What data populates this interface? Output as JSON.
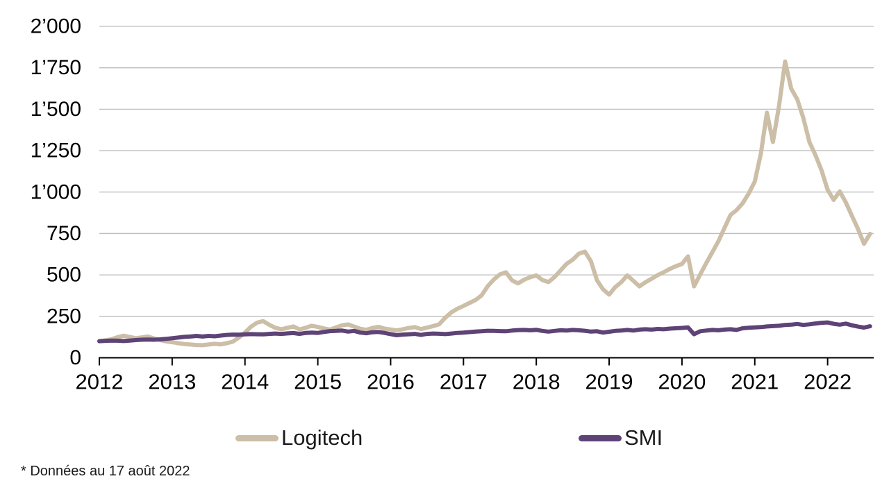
{
  "chart_data": {
    "type": "line",
    "title": "",
    "xlabel": "",
    "ylabel": "",
    "x_range": [
      2012.0,
      2022.633
    ],
    "ylim": [
      0,
      2000
    ],
    "grid": true,
    "grid_color": "#bdbdbd",
    "axis_color": "#000000",
    "text_color": "#000000",
    "legend_position": "bottom",
    "y_ticks": [
      {
        "value": 0,
        "label": "0"
      },
      {
        "value": 250,
        "label": "250"
      },
      {
        "value": 500,
        "label": "500"
      },
      {
        "value": 750,
        "label": "750"
      },
      {
        "value": 1000,
        "label": "1’000"
      },
      {
        "value": 1250,
        "label": "1’250"
      },
      {
        "value": 1500,
        "label": "1’500"
      },
      {
        "value": 1750,
        "label": "1’750"
      },
      {
        "value": 2000,
        "label": "2’000"
      }
    ],
    "x_ticks": [
      {
        "value": 2012,
        "label": "2012"
      },
      {
        "value": 2013,
        "label": "2013"
      },
      {
        "value": 2014,
        "label": "2014"
      },
      {
        "value": 2015,
        "label": "2015"
      },
      {
        "value": 2016,
        "label": "2016"
      },
      {
        "value": 2017,
        "label": "2017"
      },
      {
        "value": 2018,
        "label": "2018"
      },
      {
        "value": 2019,
        "label": "2019"
      },
      {
        "value": 2020,
        "label": "2020"
      },
      {
        "value": 2021,
        "label": "2021"
      },
      {
        "value": 2022,
        "label": "2022"
      }
    ],
    "x_start": 2012.0,
    "x_step": 0.08333,
    "series": [
      {
        "name": "Logitech",
        "color": "#ccbea7",
        "line_width": 6,
        "values": [
          100,
          105,
          112,
          124,
          133,
          126,
          118,
          123,
          128,
          117,
          107,
          99,
          94,
          88,
          83,
          80,
          77,
          76,
          80,
          84,
          81,
          88,
          97,
          122,
          152,
          188,
          212,
          221,
          199,
          181,
          172,
          181,
          189,
          171,
          181,
          193,
          186,
          177,
          170,
          183,
          196,
          201,
          188,
          175,
          169,
          180,
          187,
          176,
          171,
          165,
          172,
          180,
          185,
          173,
          182,
          191,
          202,
          242,
          274,
          296,
          313,
          331,
          349,
          377,
          432,
          472,
          503,
          516,
          467,
          449,
          471,
          486,
          497,
          469,
          457,
          487,
          527,
          567,
          592,
          628,
          641,
          583,
          468,
          413,
          381,
          426,
          456,
          497,
          464,
          431,
          456,
          477,
          499,
          516,
          536,
          553,
          566,
          612,
          431,
          502,
          571,
          637,
          703,
          782,
          862,
          891,
          932,
          991,
          1063,
          1232,
          1479,
          1302,
          1521,
          1788,
          1624,
          1560,
          1448,
          1302,
          1223,
          1132,
          1014,
          953,
          1004,
          938,
          858,
          778,
          688,
          748
        ]
      },
      {
        "name": "SMI",
        "color": "#5e4377",
        "line_width": 6,
        "values": [
          100,
          102,
          104,
          103,
          101,
          104,
          107,
          109,
          110,
          109,
          111,
          114,
          118,
          122,
          126,
          128,
          132,
          128,
          132,
          130,
          134,
          138,
          140,
          139,
          141,
          143,
          142,
          141,
          144,
          146,
          144,
          147,
          149,
          144,
          150,
          152,
          150,
          156,
          161,
          162,
          164,
          158,
          162,
          152,
          148,
          154,
          156,
          150,
          143,
          136,
          140,
          142,
          144,
          138,
          144,
          146,
          145,
          143,
          146,
          150,
          152,
          155,
          158,
          160,
          163,
          162,
          161,
          160,
          164,
          167,
          168,
          166,
          169,
          162,
          158,
          162,
          166,
          164,
          168,
          166,
          163,
          158,
          160,
          152,
          157,
          162,
          164,
          168,
          164,
          170,
          172,
          170,
          174,
          172,
          176,
          178,
          180,
          183,
          142,
          160,
          164,
          168,
          166,
          170,
          172,
          168,
          178,
          181,
          183,
          185,
          189,
          191,
          193,
          198,
          200,
          204,
          198,
          202,
          207,
          211,
          213,
          205,
          200,
          206,
          196,
          188,
          182,
          190
        ]
      }
    ]
  },
  "legend": {
    "items": [
      {
        "label": "Logitech",
        "color": "#ccbea7"
      },
      {
        "label": "SMI",
        "color": "#5e4377"
      }
    ]
  },
  "footnote": "* Données au 17 août 2022"
}
